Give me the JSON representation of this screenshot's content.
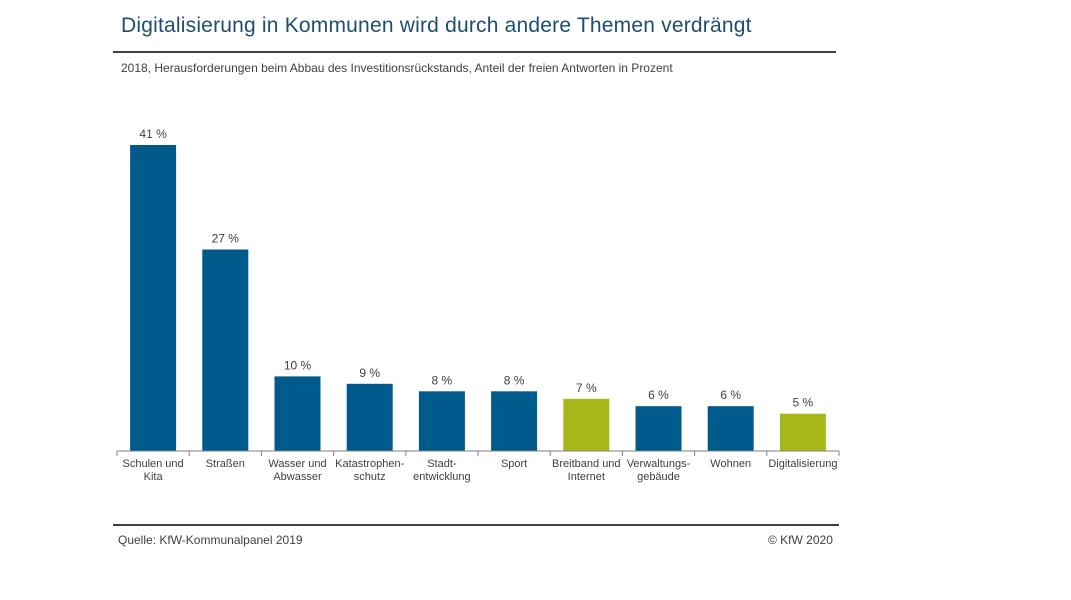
{
  "title": "Digitalisierung in Kommunen wird durch andere Themen verdrängt",
  "subtitle": "2018, Herausforderungen beim Abbau des Investitionsrückstands, Anteil der freien Antworten in Prozent",
  "source": "Quelle: KfW-Kommunalpanel 2019",
  "copyright": "© KfW 2020",
  "colors": {
    "blue": "#005a8c",
    "green": "#a8b81a"
  },
  "chart_data": {
    "type": "bar",
    "categories": [
      [
        "Schulen und",
        "Kita"
      ],
      [
        "Straßen"
      ],
      [
        "Wasser und",
        "Abwasser"
      ],
      [
        "Katastrophen-",
        "schutz"
      ],
      [
        "Stadt-",
        "entwicklung"
      ],
      [
        "Sport"
      ],
      [
        "Breitband und",
        "Internet"
      ],
      [
        "Verwaltungs-",
        "gebäude"
      ],
      [
        "Wohnen"
      ],
      [
        "Digitalisierung"
      ]
    ],
    "values": [
      41,
      27,
      10,
      9,
      8,
      8,
      7,
      6,
      6,
      5
    ],
    "value_labels": [
      "41 %",
      "27 %",
      "10 %",
      "9 %",
      "8 %",
      "8 %",
      "7 %",
      "6 %",
      "6 %",
      "5 %"
    ],
    "bar_colors": [
      "blue",
      "blue",
      "blue",
      "blue",
      "blue",
      "blue",
      "green",
      "blue",
      "blue",
      "green"
    ],
    "ylim": [
      0,
      41
    ],
    "grid": false,
    "legend": "none"
  }
}
